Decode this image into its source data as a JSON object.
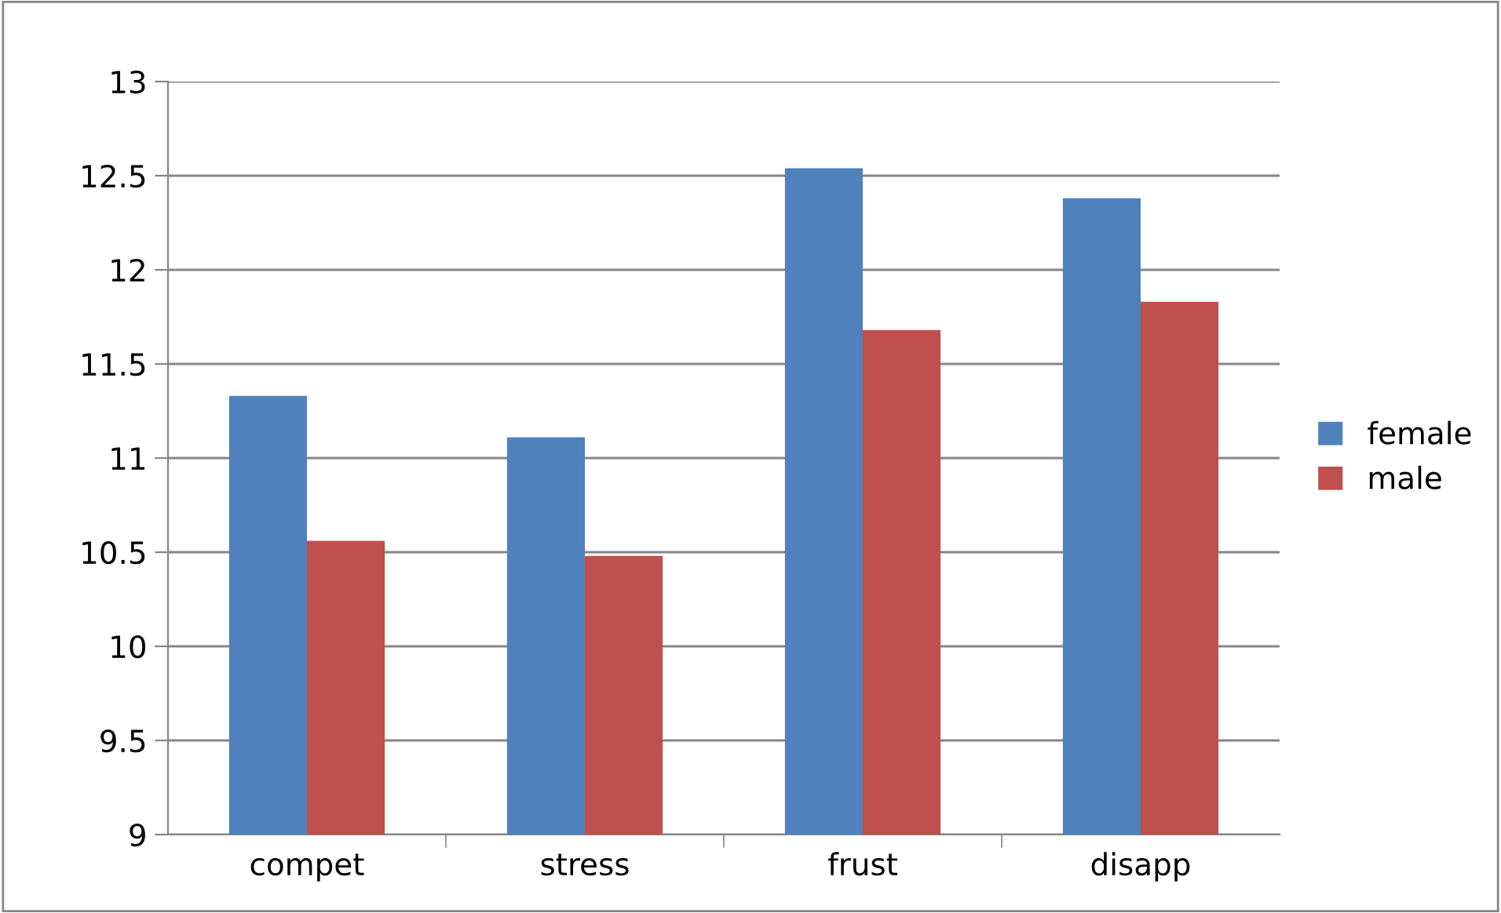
{
  "chart_data": {
    "type": "bar",
    "categories": [
      "compet",
      "stress",
      "frust",
      "disapp"
    ],
    "series": [
      {
        "name": "female",
        "color": "#4f81bd",
        "values": [
          11.33,
          11.11,
          12.54,
          12.38
        ]
      },
      {
        "name": "male",
        "color": "#c0504d",
        "values": [
          10.56,
          10.48,
          11.68,
          11.83
        ]
      }
    ],
    "ylim": [
      9,
      13
    ],
    "yticks": [
      9,
      9.5,
      10,
      10.5,
      11,
      11.5,
      12,
      12.5,
      13
    ],
    "grid": "y",
    "legend": "right"
  }
}
